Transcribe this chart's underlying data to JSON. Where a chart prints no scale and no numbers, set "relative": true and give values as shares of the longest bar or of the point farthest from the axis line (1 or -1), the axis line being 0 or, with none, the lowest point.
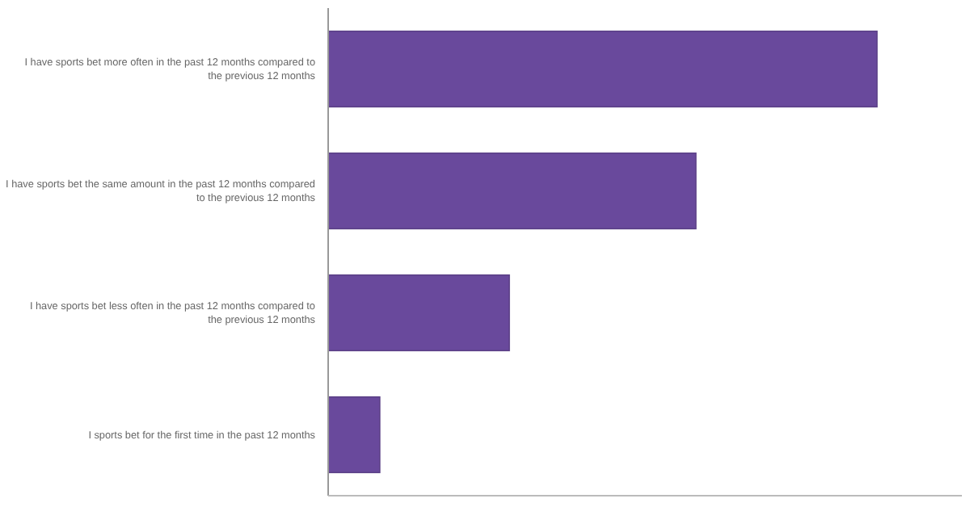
{
  "chart_data": {
    "type": "bar",
    "orientation": "horizontal",
    "relative": true,
    "categories": [
      "I have sports bet more often in the past 12 months compared to the previous 12 months",
      "I have sports bet the same amount in the past 12 months compared to the previous 12 months",
      "I have sports bet less often in the past 12 months compared to the previous 12 months",
      "I sports bet for the first time in the past 12 months"
    ],
    "values": [
      1,
      0.67,
      0.33,
      0.094
    ],
    "color": "#69499c"
  }
}
